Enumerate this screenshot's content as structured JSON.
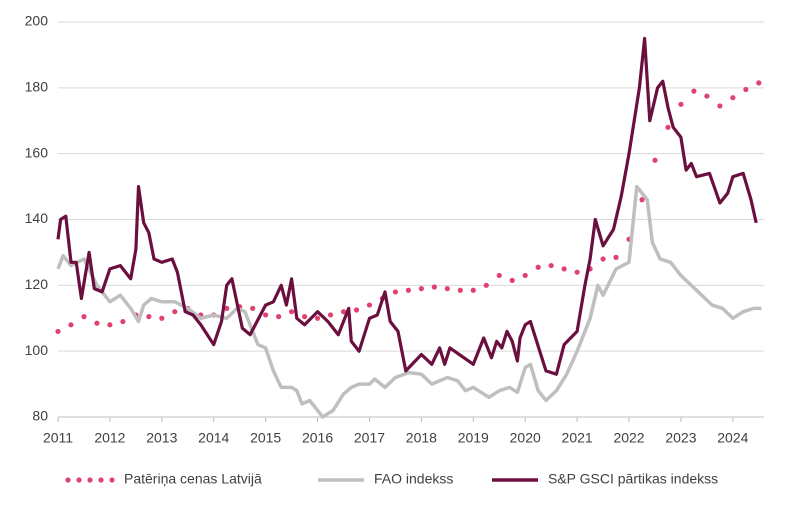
{
  "chart_data": {
    "type": "line",
    "xlim": [
      2011,
      2024.6
    ],
    "xticks": [
      2011,
      2012,
      2013,
      2014,
      2015,
      2016,
      2017,
      2018,
      2019,
      2020,
      2021,
      2022,
      2023,
      2024
    ],
    "ylim": [
      80,
      200
    ],
    "yticks": [
      80,
      100,
      120,
      140,
      160,
      180,
      200
    ],
    "grid": true,
    "legend": "bottom",
    "series": [
      {
        "name": "Patēriņa cenas Latvijā",
        "color": "#e0426e",
        "style": "dotted",
        "x": [
          2011,
          2011.25,
          2011.5,
          2011.75,
          2012,
          2012.25,
          2012.5,
          2012.75,
          2013,
          2013.25,
          2013.5,
          2013.75,
          2014,
          2014.25,
          2014.5,
          2014.75,
          2015,
          2015.25,
          2015.5,
          2015.75,
          2016,
          2016.25,
          2016.5,
          2016.75,
          2017,
          2017.25,
          2017.5,
          2017.75,
          2018,
          2018.25,
          2018.5,
          2018.75,
          2019,
          2019.25,
          2019.5,
          2019.75,
          2020,
          2020.25,
          2020.5,
          2020.75,
          2021,
          2021.25,
          2021.5,
          2021.75,
          2022,
          2022.25,
          2022.5,
          2022.75,
          2023,
          2023.25,
          2023.5,
          2023.75,
          2024,
          2024.25,
          2024.5
        ],
        "values": [
          106,
          108,
          110.5,
          108.5,
          108,
          109,
          111,
          110.5,
          110,
          112,
          113,
          111,
          111,
          113,
          113.5,
          113,
          111,
          110.5,
          112,
          110.5,
          110,
          111,
          112,
          112.5,
          114,
          116,
          118,
          118.5,
          119,
          119.5,
          119,
          118.5,
          118.5,
          120,
          123,
          121.5,
          123,
          125.5,
          126,
          125,
          124,
          125,
          128,
          128.5,
          134,
          146,
          158,
          168,
          175,
          179,
          177.5,
          174.5,
          177,
          179.5,
          181.5
        ]
      },
      {
        "name": "FAO indekss",
        "color": "#bfbfbf",
        "style": "solid",
        "x": [
          2011,
          2011.1,
          2011.25,
          2011.5,
          2011.75,
          2012,
          2012.2,
          2012.4,
          2012.55,
          2012.65,
          2012.8,
          2013,
          2013.25,
          2013.5,
          2013.75,
          2014,
          2014.25,
          2014.45,
          2014.6,
          2014.75,
          2014.85,
          2015,
          2015.15,
          2015.3,
          2015.5,
          2015.6,
          2015.7,
          2015.85,
          2016,
          2016.1,
          2016.3,
          2016.5,
          2016.65,
          2016.8,
          2017,
          2017.1,
          2017.3,
          2017.5,
          2017.75,
          2018,
          2018.2,
          2018.5,
          2018.7,
          2018.85,
          2019,
          2019.3,
          2019.5,
          2019.7,
          2019.85,
          2020,
          2020.1,
          2020.25,
          2020.4,
          2020.6,
          2020.8,
          2021,
          2021.25,
          2021.4,
          2021.5,
          2021.75,
          2022,
          2022.15,
          2022.35,
          2022.45,
          2022.6,
          2022.8,
          2023,
          2023.2,
          2023.4,
          2023.6,
          2023.8,
          2024,
          2024.2,
          2024.4,
          2024.55
        ],
        "values": [
          125,
          129,
          126,
          128,
          120,
          115,
          117,
          113,
          109,
          114,
          116,
          115,
          115,
          113,
          110,
          111,
          110,
          113,
          112,
          106,
          102,
          101,
          94,
          89,
          89,
          88,
          84,
          85,
          82,
          80,
          82,
          87,
          89,
          90,
          90,
          91.5,
          89,
          92,
          93.5,
          93,
          90,
          92,
          91,
          88,
          89,
          86,
          88,
          89,
          87.5,
          95,
          96,
          88,
          85,
          88,
          93,
          100,
          110,
          120,
          117,
          125,
          127,
          150,
          146,
          133,
          128,
          127,
          123,
          120,
          117,
          114,
          113,
          110,
          112,
          113,
          113
        ]
      },
      {
        "name": "S&P GSCI  pārtikas indekss",
        "color": "#6b0f3f",
        "style": "solid",
        "x": [
          2011,
          2011.05,
          2011.15,
          2011.25,
          2011.35,
          2011.45,
          2011.6,
          2011.7,
          2011.85,
          2012,
          2012.2,
          2012.4,
          2012.5,
          2012.55,
          2012.65,
          2012.75,
          2012.85,
          2013,
          2013.2,
          2013.3,
          2013.45,
          2013.6,
          2013.75,
          2014,
          2014.15,
          2014.25,
          2014.35,
          2014.55,
          2014.7,
          2015,
          2015.15,
          2015.3,
          2015.4,
          2015.5,
          2015.6,
          2015.75,
          2016,
          2016.2,
          2016.4,
          2016.6,
          2016.65,
          2016.8,
          2017,
          2017.15,
          2017.3,
          2017.4,
          2017.55,
          2017.7,
          2018,
          2018.2,
          2018.35,
          2018.45,
          2018.55,
          2019,
          2019.2,
          2019.35,
          2019.45,
          2019.55,
          2019.65,
          2019.75,
          2019.85,
          2019.9,
          2020,
          2020.1,
          2020.3,
          2020.4,
          2020.6,
          2020.75,
          2021,
          2021.15,
          2021.25,
          2021.35,
          2021.5,
          2021.7,
          2021.85,
          2022,
          2022.2,
          2022.3,
          2022.4,
          2022.55,
          2022.65,
          2022.75,
          2022.85,
          2023,
          2023.1,
          2023.2,
          2023.3,
          2023.55,
          2023.75,
          2023.9,
          2024,
          2024.2,
          2024.35,
          2024.45
        ],
        "values": [
          134,
          140,
          141,
          127,
          127,
          116,
          130,
          119,
          118,
          125,
          126,
          122,
          131,
          150,
          139,
          136,
          128,
          127,
          128,
          124,
          112,
          111,
          108,
          102,
          109,
          120,
          122,
          107,
          105,
          114,
          115,
          120,
          114,
          122,
          110,
          108,
          112,
          109,
          105,
          113,
          103,
          100,
          110,
          111,
          118,
          109,
          106,
          94,
          99,
          96,
          101,
          96,
          101,
          96,
          104,
          98,
          103,
          101,
          106,
          103,
          97,
          104,
          108,
          109,
          99,
          94,
          93,
          102,
          106,
          120,
          128,
          140,
          132,
          137,
          147,
          160,
          180,
          195,
          170,
          180,
          182,
          174,
          168,
          165,
          155,
          157,
          153,
          154,
          145,
          148,
          153,
          154,
          146,
          139
        ]
      }
    ]
  }
}
